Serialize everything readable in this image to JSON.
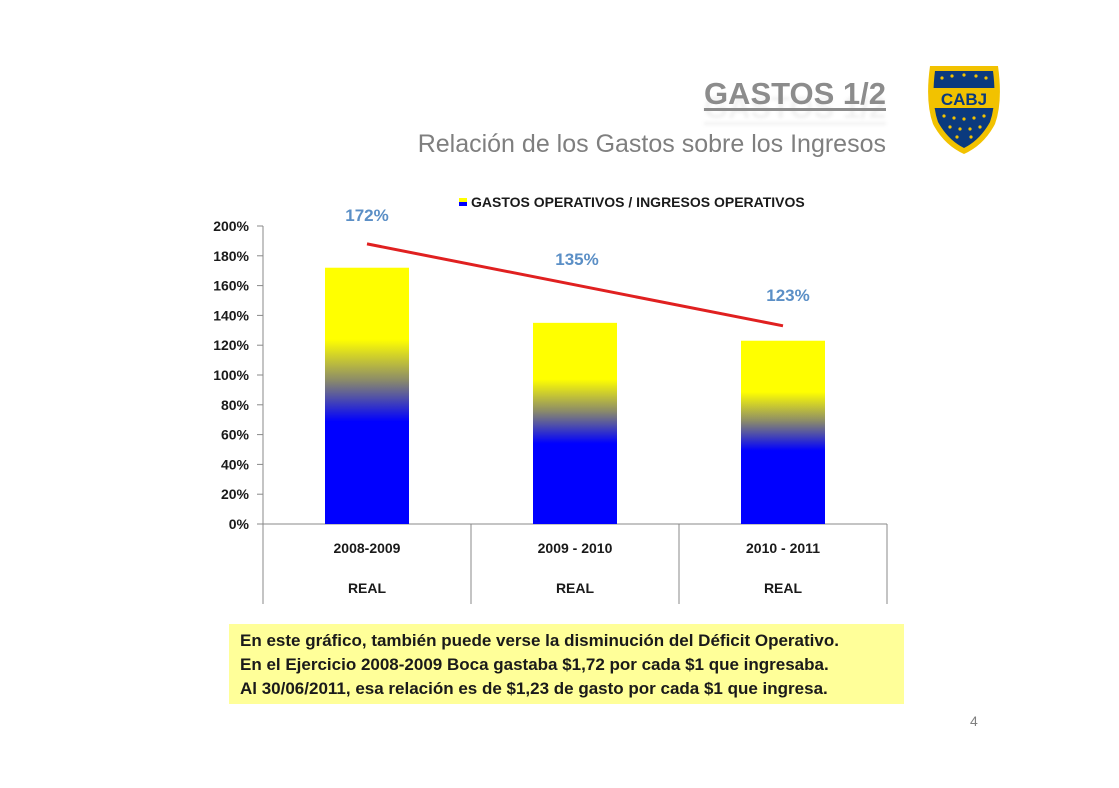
{
  "header": {
    "title": "GASTOS 1/2",
    "subtitle": "Relación de los Gastos sobre los Ingresos"
  },
  "logo": {
    "text": "CABJ",
    "icon": "club-crest-icon",
    "colors": {
      "blue": "#0b3a7e",
      "gold": "#f2c200"
    }
  },
  "chart_data": {
    "type": "bar",
    "legend": {
      "label": "GASTOS OPERATIVOS /  INGRESOS OPERATIVOS",
      "position": "top"
    },
    "categories": [
      "2008-2009",
      "2009 - 2010",
      "2010 - 2011"
    ],
    "category_sublabels": [
      "REAL",
      "REAL",
      "REAL"
    ],
    "series": [
      {
        "name": "GASTOS OPERATIVOS /  INGRESOS OPERATIVOS",
        "values": [
          172,
          135,
          123
        ]
      }
    ],
    "data_labels": [
      "172%",
      "135%",
      "123%"
    ],
    "y_ticks": [
      "0%",
      "20%",
      "40%",
      "60%",
      "80%",
      "100%",
      "120%",
      "140%",
      "160%",
      "180%",
      "200%"
    ],
    "ylim": [
      0,
      200
    ],
    "trend_line": {
      "color": "#e02020",
      "from": [
        0,
        188
      ],
      "to": [
        2,
        133
      ]
    },
    "bar_gradient": {
      "bottom": "#0000ff",
      "top": "#ffff00"
    },
    "label_color": "#5b8fc6",
    "grid": false
  },
  "note": {
    "lines": [
      "En este gráfico, también puede verse la disminución del Déficit Operativo.",
      "En el Ejercicio 2008-2009 Boca gastaba $1,72  por cada $1 que ingresaba.",
      "Al 30/06/2011, esa relación es de $1,23 de gasto por cada $1 que ingresa."
    ]
  },
  "page": {
    "number": "4"
  }
}
